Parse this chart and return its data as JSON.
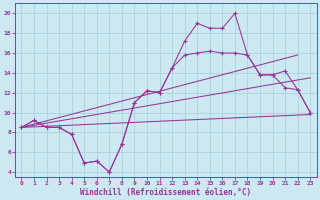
{
  "xlabel": "Windchill (Refroidissement éolien,°C)",
  "xlim": [
    -0.5,
    23.5
  ],
  "ylim": [
    3.5,
    21
  ],
  "xticks": [
    0,
    1,
    2,
    3,
    4,
    5,
    6,
    7,
    8,
    9,
    10,
    11,
    12,
    13,
    14,
    15,
    16,
    17,
    18,
    19,
    20,
    21,
    22,
    23
  ],
  "yticks": [
    4,
    6,
    8,
    10,
    12,
    14,
    16,
    18,
    20
  ],
  "bg_color": "#cce8f0",
  "grid_color": "#aad4e0",
  "line_color": "#993399",
  "line1_x": [
    0,
    1,
    2,
    3,
    4,
    5,
    6,
    7,
    8,
    9,
    10,
    11,
    12,
    13,
    14,
    15,
    16,
    17,
    18,
    19,
    20,
    21,
    22,
    23
  ],
  "line1_y": [
    8.5,
    9.2,
    8.5,
    8.5,
    7.8,
    4.9,
    5.1,
    4.0,
    6.8,
    11.0,
    12.2,
    12.0,
    14.5,
    17.2,
    19.0,
    18.5,
    18.5,
    20.0,
    15.8,
    13.8,
    13.8,
    14.2,
    12.3,
    10.0
  ],
  "line2_x": [
    0,
    1,
    2,
    3,
    4,
    5,
    6,
    7,
    8,
    9,
    10,
    11,
    12,
    13,
    14,
    15,
    16,
    17,
    18,
    19,
    20,
    21,
    22,
    23
  ],
  "line2_y": [
    8.5,
    9.2,
    8.5,
    8.5,
    7.8,
    4.9,
    5.1,
    4.0,
    6.8,
    11.0,
    12.2,
    12.0,
    14.5,
    15.8,
    16.0,
    16.2,
    16.0,
    16.0,
    15.8,
    13.8,
    13.8,
    12.5,
    12.3,
    10.0
  ],
  "line3_x": [
    0,
    22
  ],
  "line3_y": [
    8.5,
    15.8
  ],
  "line4_x": [
    0,
    23
  ],
  "line4_y": [
    8.5,
    13.5
  ],
  "line5_x": [
    0,
    23
  ],
  "line5_y": [
    8.5,
    9.8
  ]
}
